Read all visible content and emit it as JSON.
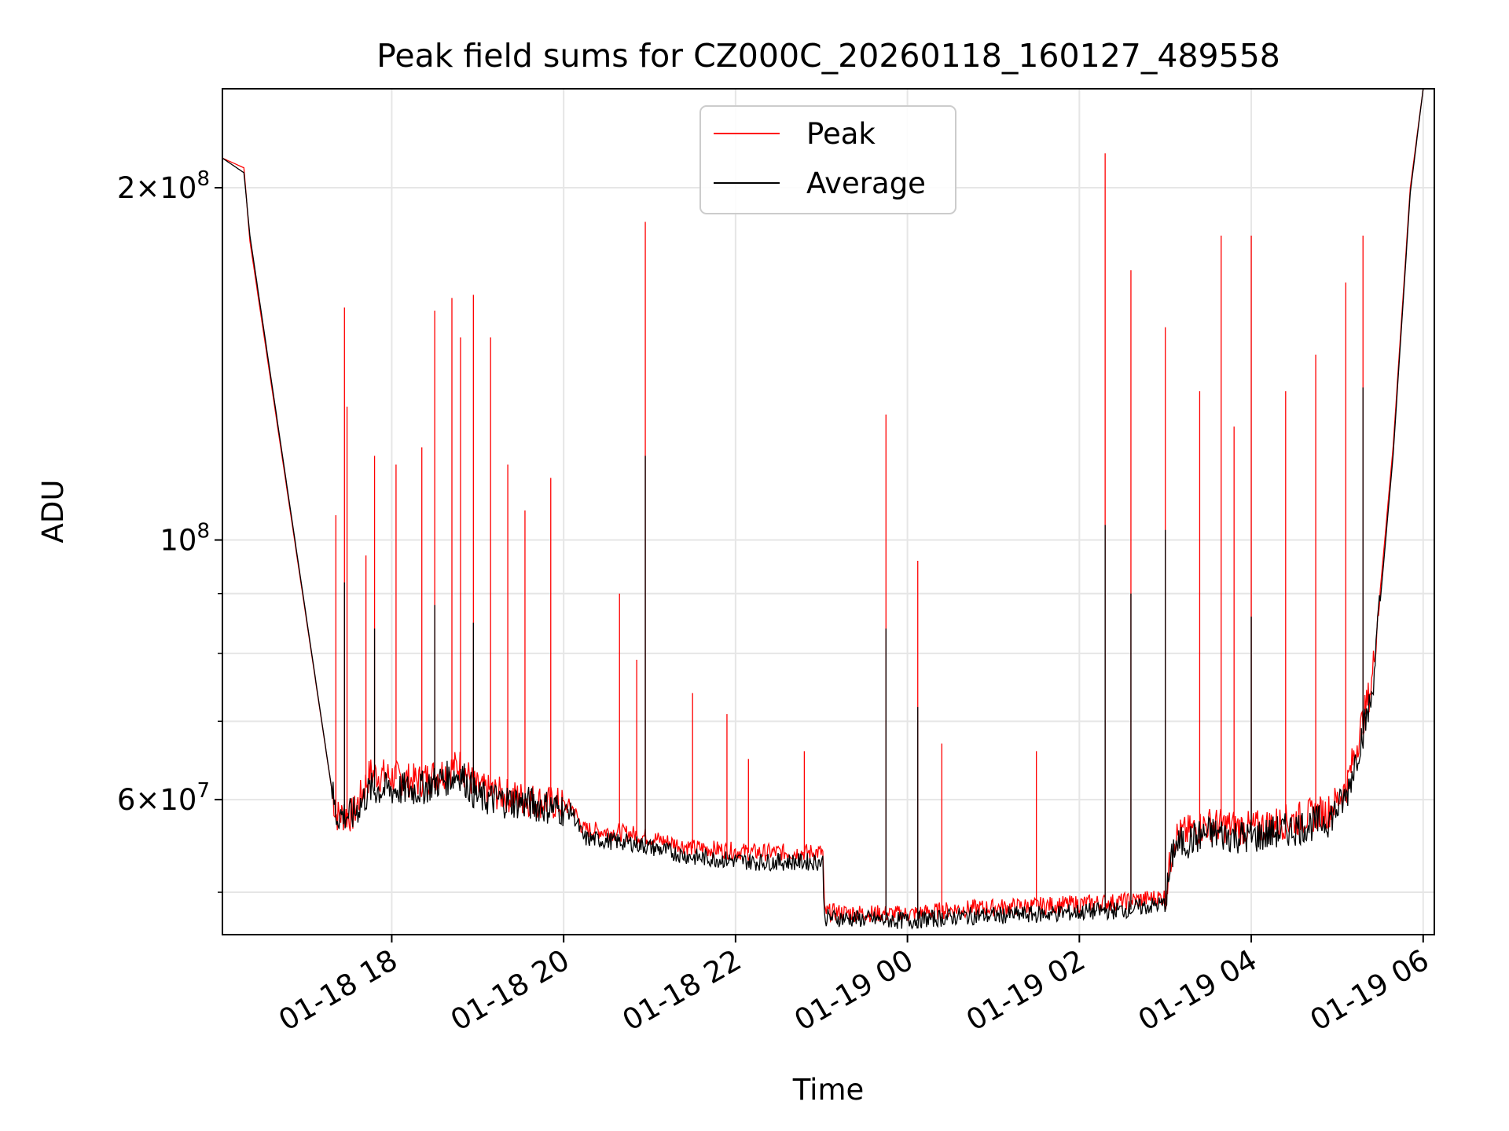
{
  "chart_data": {
    "type": "line",
    "title": "Peak field sums for CZ000C_20260118_160127_489558",
    "xlabel": "Time",
    "ylabel": "ADU",
    "yscale": "log",
    "ylim": [
      46000000,
      243000000
    ],
    "xlim_hours_since_2026-01-18T00:00": [
      16.03,
      30.13
    ],
    "x_ticks": [
      {
        "hour": 18,
        "label": "01-18 18"
      },
      {
        "hour": 20,
        "label": "01-18 20"
      },
      {
        "hour": 22,
        "label": "01-18 22"
      },
      {
        "hour": 24,
        "label": "01-19 00"
      },
      {
        "hour": 26,
        "label": "01-19 02"
      },
      {
        "hour": 28,
        "label": "01-19 04"
      },
      {
        "hour": 30,
        "label": "01-19 06"
      }
    ],
    "y_major_ticks": [
      {
        "value": 60000000,
        "base": "6",
        "exp": "7"
      },
      {
        "value": 100000000,
        "base": "",
        "exp": "8"
      },
      {
        "value": 200000000,
        "base": "2",
        "exp": "8"
      }
    ],
    "y_minor_ticks": [
      50000000,
      70000000,
      80000000,
      90000000
    ],
    "grid": true,
    "legend": {
      "position": "upper-center",
      "entries": [
        "Peak",
        "Average"
      ]
    },
    "series": [
      {
        "name": "Peak",
        "color": "#ff0000",
        "baseline": [
          [
            16.03,
            212000000
          ],
          [
            16.28,
            208000000
          ],
          [
            16.35,
            180000000
          ],
          [
            17.35,
            58000000
          ],
          [
            17.55,
            58000000
          ],
          [
            17.75,
            63000000
          ],
          [
            18.3,
            62000000
          ],
          [
            18.8,
            64000000
          ],
          [
            19.0,
            61000000
          ],
          [
            19.5,
            60000000
          ],
          [
            20.1,
            59000000
          ],
          [
            20.23,
            56500000
          ],
          [
            20.8,
            56000000
          ],
          [
            21.5,
            54500000
          ],
          [
            22.2,
            54000000
          ],
          [
            23.02,
            54000000
          ],
          [
            23.03,
            48000000
          ],
          [
            24.0,
            47800000
          ],
          [
            24.6,
            48300000
          ],
          [
            25.5,
            48600000
          ],
          [
            26.5,
            49000000
          ],
          [
            27.0,
            49500000
          ],
          [
            27.1,
            55500000
          ],
          [
            27.5,
            57000000
          ],
          [
            28.0,
            56500000
          ],
          [
            28.5,
            57500000
          ],
          [
            28.9,
            58500000
          ],
          [
            29.1,
            61000000
          ],
          [
            29.4,
            75000000
          ],
          [
            29.65,
            120000000
          ],
          [
            29.85,
            200000000
          ],
          [
            30.0,
            243000000
          ]
        ],
        "spikes": [
          [
            17.35,
            105000000
          ],
          [
            17.45,
            158000000
          ],
          [
            17.48,
            130000000
          ],
          [
            17.7,
            97000000
          ],
          [
            17.8,
            118000000
          ],
          [
            18.05,
            116000000
          ],
          [
            18.35,
            120000000
          ],
          [
            18.5,
            157000000
          ],
          [
            18.7,
            161000000
          ],
          [
            18.8,
            149000000
          ],
          [
            18.95,
            162000000
          ],
          [
            19.15,
            149000000
          ],
          [
            19.35,
            116000000
          ],
          [
            19.55,
            106000000
          ],
          [
            19.85,
            113000000
          ],
          [
            20.65,
            90000000
          ],
          [
            20.85,
            79000000
          ],
          [
            20.95,
            187000000
          ],
          [
            21.5,
            74000000
          ],
          [
            21.9,
            71000000
          ],
          [
            22.15,
            65000000
          ],
          [
            22.8,
            66000000
          ],
          [
            23.75,
            128000000
          ],
          [
            24.12,
            96000000
          ],
          [
            24.4,
            67000000
          ],
          [
            25.5,
            66000000
          ],
          [
            26.3,
            214000000
          ],
          [
            26.6,
            170000000
          ],
          [
            27.0,
            152000000
          ],
          [
            27.4,
            134000000
          ],
          [
            27.65,
            182000000
          ],
          [
            27.8,
            125000000
          ],
          [
            28.0,
            182000000
          ],
          [
            28.4,
            134000000
          ],
          [
            28.75,
            144000000
          ],
          [
            29.1,
            166000000
          ],
          [
            29.3,
            182000000
          ]
        ]
      },
      {
        "name": "Average",
        "color": "#000000",
        "baseline": [
          [
            16.03,
            212000000
          ],
          [
            16.28,
            206000000
          ],
          [
            16.35,
            182000000
          ],
          [
            17.35,
            58000000
          ],
          [
            17.55,
            58000000
          ],
          [
            17.75,
            61000000
          ],
          [
            18.3,
            61000000
          ],
          [
            18.8,
            63000000
          ],
          [
            19.0,
            60000000
          ],
          [
            19.5,
            59500000
          ],
          [
            20.1,
            58500000
          ],
          [
            20.23,
            55500000
          ],
          [
            20.8,
            55000000
          ],
          [
            21.5,
            53500000
          ],
          [
            22.2,
            53000000
          ],
          [
            23.02,
            53000000
          ],
          [
            23.03,
            47500000
          ],
          [
            24.0,
            47200000
          ],
          [
            24.6,
            47600000
          ],
          [
            25.5,
            47800000
          ],
          [
            26.5,
            48200000
          ],
          [
            27.0,
            48800000
          ],
          [
            27.1,
            54500000
          ],
          [
            27.5,
            56000000
          ],
          [
            28.0,
            55500000
          ],
          [
            28.5,
            56500000
          ],
          [
            28.9,
            57500000
          ],
          [
            29.1,
            60000000
          ],
          [
            29.4,
            73000000
          ],
          [
            29.65,
            118000000
          ],
          [
            29.85,
            198000000
          ],
          [
            30.0,
            243000000
          ]
        ],
        "spikes": [
          [
            17.45,
            92000000
          ],
          [
            17.8,
            84000000
          ],
          [
            18.5,
            88000000
          ],
          [
            18.95,
            85000000
          ],
          [
            20.95,
            118000000
          ],
          [
            23.75,
            84000000
          ],
          [
            24.12,
            72000000
          ],
          [
            26.3,
            103000000
          ],
          [
            26.6,
            90000000
          ],
          [
            27.0,
            102000000
          ],
          [
            28.0,
            86000000
          ],
          [
            29.3,
            135000000
          ]
        ]
      }
    ]
  }
}
